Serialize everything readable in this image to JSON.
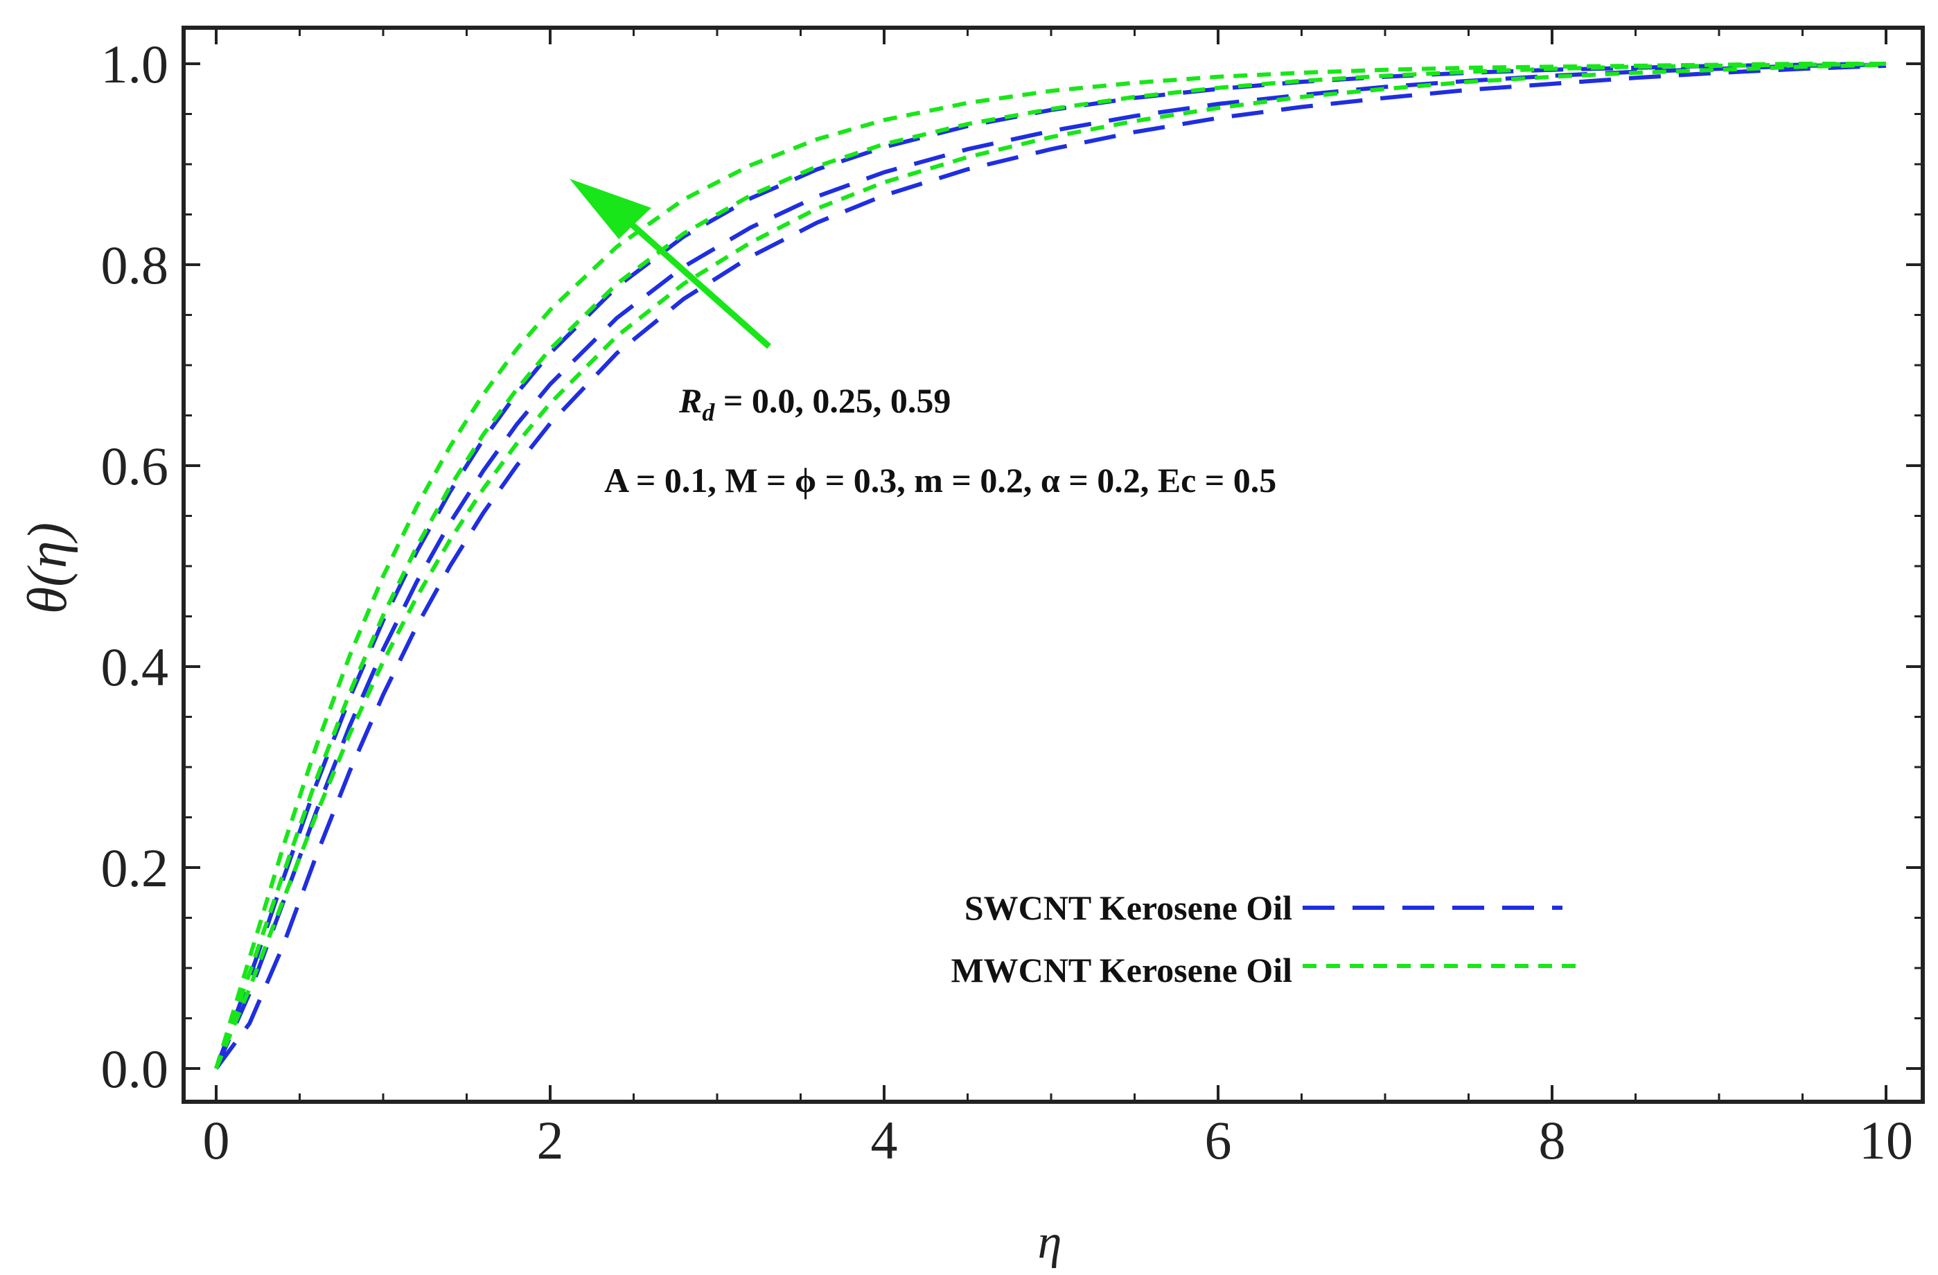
{
  "chart_data": {
    "type": "line",
    "xlabel": "η",
    "ylabel": "θ(η)",
    "xlim": [
      0,
      10
    ],
    "ylim": [
      0,
      1
    ],
    "x_ticks": [
      "0",
      "2",
      "4",
      "6",
      "8",
      "10"
    ],
    "y_ticks": [
      "0.0",
      "0.2",
      "0.4",
      "0.6",
      "0.8",
      "1.0"
    ],
    "grid": false,
    "legend_position": "bottom-right",
    "colors": {
      "swcnt": "#1f2ee0",
      "mwcnt": "#19e619",
      "arrow": "#19e619",
      "axis": "#222222"
    },
    "x": [
      0,
      0.2,
      0.4,
      0.6,
      0.8,
      1,
      1.2,
      1.4,
      1.6,
      1.8,
      2,
      2.4,
      2.8,
      3.2,
      3.6,
      4,
      4.5,
      5,
      5.5,
      6,
      6.5,
      7,
      7.5,
      8,
      8.5,
      9,
      9.5,
      10
    ],
    "series": [
      {
        "group": "swcnt",
        "legend": "SWCNT Kerosene Oil",
        "Rd": "0.0",
        "values": [
          0,
          0.045,
          0.122,
          0.212,
          0.296,
          0.372,
          0.44,
          0.5,
          0.553,
          0.6,
          0.642,
          0.712,
          0.766,
          0.808,
          0.842,
          0.869,
          0.895,
          0.915,
          0.932,
          0.946,
          0.957,
          0.966,
          0.974,
          0.98,
          0.986,
          0.991,
          0.995,
          0.998
        ]
      },
      {
        "group": "swcnt",
        "legend": "SWCNT Kerosene Oil",
        "Rd": "0.25",
        "values": [
          0,
          0.075,
          0.165,
          0.256,
          0.341,
          0.417,
          0.484,
          0.543,
          0.595,
          0.641,
          0.681,
          0.747,
          0.798,
          0.837,
          0.868,
          0.892,
          0.915,
          0.933,
          0.948,
          0.96,
          0.969,
          0.977,
          0.983,
          0.988,
          0.992,
          0.995,
          0.998,
          0.999
        ]
      },
      {
        "group": "swcnt",
        "legend": "SWCNT Kerosene Oil",
        "Rd": "0.59",
        "values": [
          0,
          0.09,
          0.188,
          0.283,
          0.369,
          0.446,
          0.514,
          0.574,
          0.626,
          0.672,
          0.712,
          0.778,
          0.828,
          0.866,
          0.895,
          0.917,
          0.938,
          0.954,
          0.966,
          0.975,
          0.982,
          0.987,
          0.991,
          0.994,
          0.996,
          0.998,
          0.999,
          1.0
        ]
      },
      {
        "group": "mwcnt",
        "legend": "MWCNT Kerosene Oil",
        "Rd": "0.0",
        "values": [
          0,
          0.08,
          0.167,
          0.253,
          0.333,
          0.405,
          0.469,
          0.526,
          0.577,
          0.622,
          0.662,
          0.729,
          0.781,
          0.822,
          0.856,
          0.882,
          0.907,
          0.927,
          0.943,
          0.956,
          0.967,
          0.975,
          0.982,
          0.987,
          0.991,
          0.994,
          0.997,
          0.999
        ]
      },
      {
        "group": "mwcnt",
        "legend": "MWCNT Kerosene Oil",
        "Rd": "0.25",
        "values": [
          0,
          0.095,
          0.193,
          0.288,
          0.374,
          0.451,
          0.519,
          0.579,
          0.631,
          0.676,
          0.716,
          0.781,
          0.831,
          0.869,
          0.898,
          0.92,
          0.94,
          0.955,
          0.967,
          0.976,
          0.983,
          0.988,
          0.992,
          0.995,
          0.997,
          0.998,
          0.999,
          1.0
        ]
      },
      {
        "group": "mwcnt",
        "legend": "MWCNT Kerosene Oil",
        "Rd": "0.59",
        "values": [
          0,
          0.11,
          0.22,
          0.321,
          0.411,
          0.49,
          0.559,
          0.619,
          0.671,
          0.716,
          0.755,
          0.818,
          0.865,
          0.899,
          0.925,
          0.944,
          0.961,
          0.973,
          0.981,
          0.987,
          0.991,
          0.994,
          0.996,
          0.997,
          0.998,
          0.999,
          1.0,
          1.0
        ]
      }
    ],
    "legend": [
      {
        "group": "swcnt",
        "label": "SWCNT Kerosene Oil"
      },
      {
        "group": "mwcnt",
        "label": "MWCNT Kerosene Oil"
      }
    ],
    "annotations": {
      "rd_symbol": "R",
      "rd_subscript": "d",
      "rd_values": " = 0.0, 0.25, 0.59",
      "params": "A = 0.1, M = ϕ = 0.3, m = 0.2, α = 0.2, Ec = 0.5"
    }
  }
}
